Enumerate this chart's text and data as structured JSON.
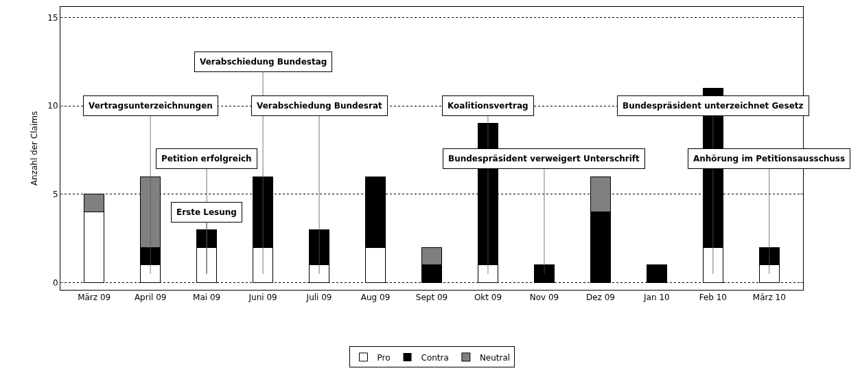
{
  "chart_data": {
    "type": "bar",
    "stacked": true,
    "ylabel": "Anzahl der Claims",
    "categories": [
      "März 09",
      "April 09",
      "Mai 09",
      "Juni 09",
      "Juli 09",
      "Aug 09",
      "Sept 09",
      "Okt 09",
      "Nov 09",
      "Dez 09",
      "Jan 10",
      "Feb 10",
      "März 10"
    ],
    "series": [
      {
        "name": "Pro",
        "color": "#ffffff",
        "values": [
          4,
          1,
          2,
          2,
          1,
          2,
          0,
          1,
          0,
          0,
          0,
          2,
          1
        ]
      },
      {
        "name": "Contra",
        "color": "#000000",
        "values": [
          0,
          1,
          1,
          4,
          2,
          4,
          1,
          8,
          1,
          4,
          1,
          9,
          1
        ]
      },
      {
        "name": "Neutral",
        "color": "#808080",
        "values": [
          1,
          4,
          0,
          0,
          0,
          0,
          1,
          0,
          0,
          2,
          0,
          0,
          0
        ]
      }
    ],
    "ylim": [
      -0.4,
      15.6
    ],
    "yticks": [
      0,
      5,
      10,
      15
    ],
    "grid": "y",
    "legend": "bottom",
    "annotations": [
      "Vertragsunterzeichnungen",
      "Petition erfolgreich",
      "Erste Lesung",
      "Verabschiedung Bundestag",
      "Verabschiedung Bundesrat",
      "Koalitionsvertrag",
      "Bundespräsident verweigert Unterschrift",
      "Bundespräsident unterzeichnet Gesetz",
      "Anhörung im Petitionsausschuss"
    ]
  }
}
